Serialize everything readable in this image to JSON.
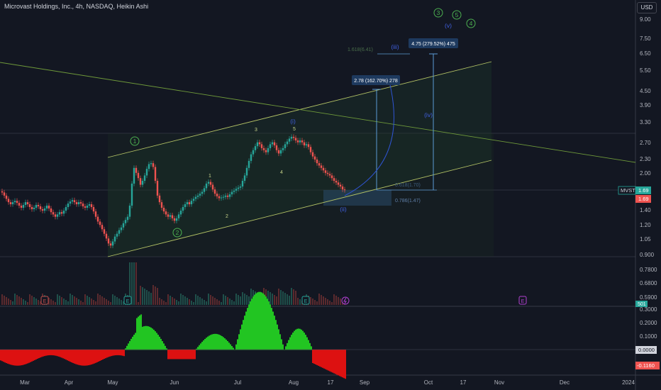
{
  "header": {
    "title": "Microvast Holdings, Inc., 4h, NASDAQ, Heikin Ashi",
    "currency_button": "USD"
  },
  "chart_data": {
    "type": "candlestick",
    "symbol": "MVST",
    "price_axis": {
      "scale": "log",
      "ticks": [
        "9.00",
        "7.50",
        "6.50",
        "5.50",
        "4.50",
        "3.90",
        "3.30",
        "2.70",
        "2.30",
        "2.00",
        "1.40",
        "1.20",
        "1.05",
        "0.900",
        "0.7800",
        "0.6800",
        "0.5900"
      ],
      "last_price_tag": "MVST",
      "last_price": "1.69",
      "last_price_red": "1.69",
      "volume_tag": "501"
    },
    "time_axis": {
      "ticks": [
        "Mar",
        "Apr",
        "May",
        "Jun",
        "Jul",
        "Aug",
        "17",
        "Sep",
        "Oct",
        "17",
        "Nov",
        "Dec",
        "2024"
      ]
    },
    "price_path": [
      [
        0,
        1.67
      ],
      [
        3,
        1.65
      ],
      [
        6,
        1.6
      ],
      [
        9,
        1.55
      ],
      [
        12,
        1.5
      ],
      [
        15,
        1.47
      ],
      [
        18,
        1.5
      ],
      [
        21,
        1.52
      ],
      [
        24,
        1.49
      ],
      [
        27,
        1.45
      ],
      [
        30,
        1.42
      ],
      [
        33,
        1.46
      ],
      [
        36,
        1.5
      ],
      [
        39,
        1.47
      ],
      [
        42,
        1.43
      ],
      [
        45,
        1.4
      ],
      [
        48,
        1.42
      ],
      [
        51,
        1.46
      ],
      [
        54,
        1.44
      ],
      [
        57,
        1.4
      ],
      [
        60,
        1.38
      ],
      [
        63,
        1.41
      ],
      [
        66,
        1.45
      ],
      [
        69,
        1.41
      ],
      [
        72,
        1.36
      ],
      [
        75,
        1.33
      ],
      [
        78,
        1.3
      ],
      [
        81,
        1.33
      ],
      [
        84,
        1.36
      ],
      [
        87,
        1.34
      ],
      [
        90,
        1.38
      ],
      [
        93,
        1.43
      ],
      [
        96,
        1.48
      ],
      [
        99,
        1.51
      ],
      [
        102,
        1.53
      ],
      [
        105,
        1.5
      ],
      [
        108,
        1.47
      ],
      [
        111,
        1.5
      ],
      [
        114,
        1.48
      ],
      [
        117,
        1.44
      ],
      [
        120,
        1.42
      ],
      [
        123,
        1.45
      ],
      [
        126,
        1.47
      ],
      [
        129,
        1.43
      ],
      [
        132,
        1.37
      ],
      [
        135,
        1.3
      ],
      [
        138,
        1.24
      ],
      [
        141,
        1.2
      ],
      [
        144,
        1.15
      ],
      [
        147,
        1.1
      ],
      [
        150,
        1.05
      ],
      [
        153,
        1.0
      ],
      [
        156,
        0.98
      ],
      [
        159,
        1.02
      ],
      [
        162,
        1.07
      ],
      [
        165,
        1.1
      ],
      [
        168,
        1.14
      ],
      [
        171,
        1.17
      ],
      [
        174,
        1.22
      ],
      [
        177,
        1.26
      ],
      [
        180,
        1.3
      ],
      [
        183,
        1.45
      ],
      [
        186,
        1.8
      ],
      [
        189,
        2.1
      ],
      [
        192,
        2.0
      ],
      [
        195,
        1.9
      ],
      [
        198,
        1.78
      ],
      [
        201,
        1.85
      ],
      [
        204,
        1.95
      ],
      [
        207,
        2.08
      ],
      [
        210,
        2.18
      ],
      [
        213,
        2.2
      ],
      [
        216,
        2.12
      ],
      [
        219,
        1.85
      ],
      [
        222,
        1.6
      ],
      [
        225,
        1.5
      ],
      [
        228,
        1.42
      ],
      [
        231,
        1.37
      ],
      [
        234,
        1.33
      ],
      [
        237,
        1.3
      ],
      [
        240,
        1.32
      ],
      [
        243,
        1.28
      ],
      [
        246,
        1.25
      ],
      [
        249,
        1.28
      ],
      [
        252,
        1.33
      ],
      [
        255,
        1.38
      ],
      [
        258,
        1.43
      ],
      [
        261,
        1.47
      ],
      [
        264,
        1.5
      ],
      [
        267,
        1.47
      ],
      [
        270,
        1.52
      ],
      [
        273,
        1.55
      ],
      [
        276,
        1.58
      ],
      [
        279,
        1.6
      ],
      [
        282,
        1.63
      ],
      [
        285,
        1.66
      ],
      [
        288,
        1.72
      ],
      [
        291,
        1.8
      ],
      [
        294,
        1.83
      ],
      [
        297,
        1.78
      ],
      [
        300,
        1.7
      ],
      [
        303,
        1.63
      ],
      [
        306,
        1.59
      ],
      [
        309,
        1.56
      ],
      [
        312,
        1.57
      ],
      [
        315,
        1.58
      ],
      [
        318,
        1.6
      ],
      [
        321,
        1.58
      ],
      [
        324,
        1.62
      ],
      [
        327,
        1.66
      ],
      [
        330,
        1.68
      ],
      [
        333,
        1.71
      ],
      [
        336,
        1.73
      ],
      [
        339,
        1.75
      ],
      [
        342,
        1.85
      ],
      [
        345,
        1.95
      ],
      [
        348,
        2.1
      ],
      [
        351,
        2.25
      ],
      [
        354,
        2.4
      ],
      [
        357,
        2.5
      ],
      [
        360,
        2.6
      ],
      [
        363,
        2.7
      ],
      [
        366,
        2.65
      ],
      [
        369,
        2.55
      ],
      [
        372,
        2.5
      ],
      [
        375,
        2.45
      ],
      [
        378,
        2.55
      ],
      [
        381,
        2.65
      ],
      [
        384,
        2.7
      ],
      [
        387,
        2.62
      ],
      [
        390,
        2.5
      ],
      [
        393,
        2.42
      ],
      [
        396,
        2.5
      ],
      [
        399,
        2.55
      ],
      [
        402,
        2.65
      ],
      [
        405,
        2.72
      ],
      [
        408,
        2.8
      ],
      [
        411,
        2.85
      ],
      [
        414,
        2.82
      ],
      [
        417,
        2.75
      ],
      [
        420,
        2.7
      ],
      [
        423,
        2.75
      ],
      [
        426,
        2.7
      ],
      [
        429,
        2.62
      ],
      [
        432,
        2.65
      ],
      [
        435,
        2.58
      ],
      [
        438,
        2.45
      ],
      [
        441,
        2.35
      ],
      [
        444,
        2.28
      ],
      [
        447,
        2.2
      ],
      [
        450,
        2.15
      ],
      [
        453,
        2.1
      ],
      [
        456,
        2.05
      ],
      [
        459,
        2.0
      ],
      [
        462,
        1.98
      ],
      [
        465,
        1.95
      ],
      [
        468,
        1.9
      ],
      [
        471,
        1.85
      ],
      [
        474,
        1.82
      ],
      [
        477,
        1.78
      ],
      [
        480,
        1.75
      ],
      [
        483,
        1.7
      ],
      [
        486,
        1.69
      ]
    ],
    "oscillator": {
      "ticks": [
        "0.3000",
        "0.2000",
        "0.1000"
      ],
      "zero_tag": "0.0000",
      "last_tag": "-0.1160"
    },
    "annotations": {
      "wave_labels": [
        "1",
        "2",
        "3",
        "4",
        "5",
        "(v)",
        "(i)",
        "(ii)",
        "(iii)",
        "(iv)",
        "1",
        "2",
        "3",
        "4",
        "5"
      ],
      "fib_levels": [
        "1.618(6.41)",
        "0.618(1.70)",
        "0.786(1.47)"
      ],
      "measure_1": "2.78 (162.70%) 278",
      "measure_2": "4.75 (279.52%) 475",
      "event_markers": [
        "E",
        "E",
        "E",
        "E"
      ]
    }
  },
  "colors": {
    "background": "#131722",
    "up": "#26a69a",
    "down": "#ef5350",
    "osc_up": "#22c522",
    "osc_down": "#dd1111",
    "channel": "#b5c466",
    "trend": "#6f9a3a",
    "wave_blue": "#3b5bdb",
    "wave_green": "#4caf50",
    "label_box": "#1e3a5f",
    "price_tag": "#26a69a"
  }
}
